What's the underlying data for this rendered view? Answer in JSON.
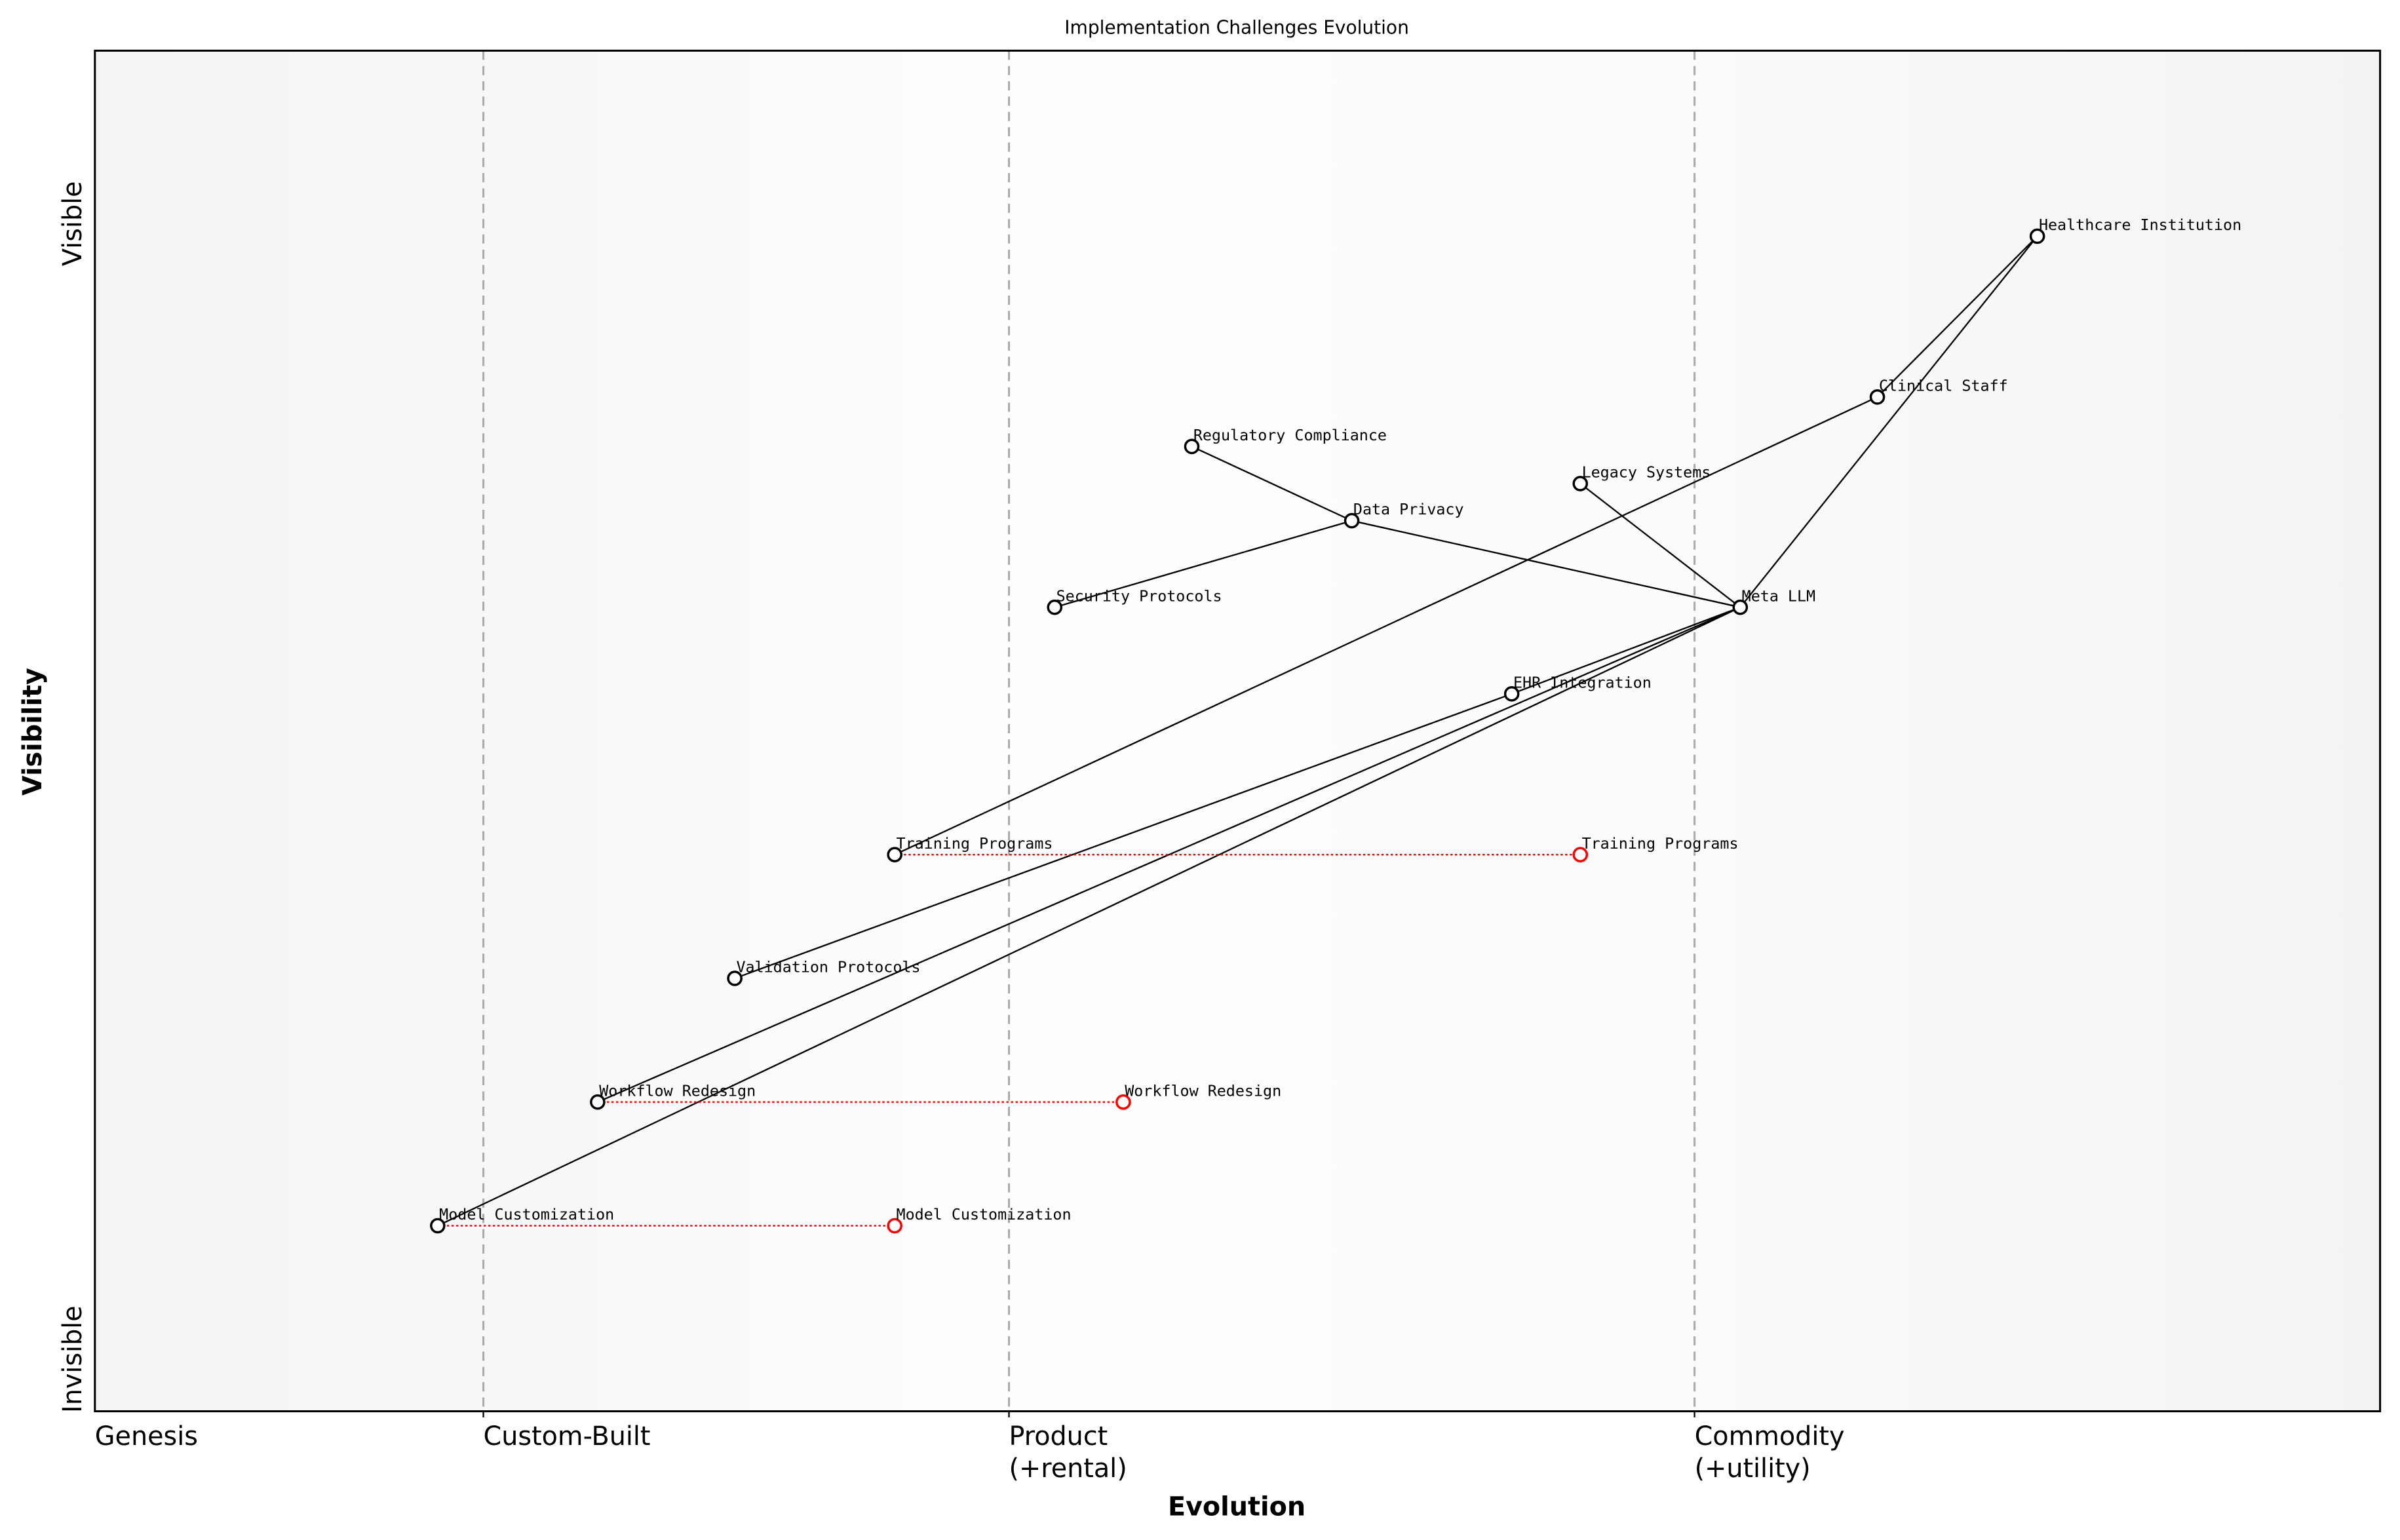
{
  "chart_data": {
    "type": "scatter",
    "title": "Implementation Challenges Evolution",
    "xlabel": "Evolution",
    "ylabel": "Visibility",
    "xlim": [
      0,
      1
    ],
    "ylim": [
      0,
      1.1
    ],
    "grid": false,
    "x_stage_ticks": [
      {
        "value": 0,
        "label": "Genesis"
      },
      {
        "value": 0.17,
        "label": "Custom-Built"
      },
      {
        "value": 0.4,
        "label": "Product\n(+rental)"
      },
      {
        "value": 0.7,
        "label": "Commodity\n(+utility)"
      }
    ],
    "y_labels": {
      "top": "Visible",
      "bottom": "Invisible"
    },
    "components": [
      {
        "name": "Healthcare Institution",
        "x": 0.85,
        "y": 0.95
      },
      {
        "name": "Clinical Staff",
        "x": 0.78,
        "y": 0.82
      },
      {
        "name": "Regulatory Compliance",
        "x": 0.48,
        "y": 0.78
      },
      {
        "name": "Legacy Systems",
        "x": 0.65,
        "y": 0.75
      },
      {
        "name": "Data Privacy",
        "x": 0.55,
        "y": 0.72
      },
      {
        "name": "Security Protocols",
        "x": 0.42,
        "y": 0.65
      },
      {
        "name": "Meta LLM",
        "x": 0.72,
        "y": 0.65
      },
      {
        "name": "EHR Integration",
        "x": 0.62,
        "y": 0.58
      },
      {
        "name": "Training Programs",
        "x": 0.35,
        "y": 0.45
      },
      {
        "name": "Validation Protocols",
        "x": 0.28,
        "y": 0.35
      },
      {
        "name": "Workflow Redesign",
        "x": 0.22,
        "y": 0.25
      },
      {
        "name": "Model Customization",
        "x": 0.15,
        "y": 0.15
      }
    ],
    "links": [
      [
        "Healthcare Institution",
        "Clinical Staff"
      ],
      [
        "Healthcare Institution",
        "Meta LLM"
      ],
      [
        "Clinical Staff",
        "Training Programs"
      ],
      [
        "Legacy Systems",
        "Meta LLM"
      ],
      [
        "Regulatory Compliance",
        "Data Privacy"
      ],
      [
        "Data Privacy",
        "Security Protocols"
      ],
      [
        "Data Privacy",
        "Meta LLM"
      ],
      [
        "Meta LLM",
        "EHR Integration"
      ],
      [
        "EHR Integration",
        "Validation Protocols"
      ],
      [
        "Meta LLM",
        "Workflow Redesign"
      ],
      [
        "Meta LLM",
        "Model Customization"
      ]
    ],
    "evolutions": [
      {
        "name": "Training Programs",
        "from_x": 0.35,
        "to_x": 0.65,
        "y": 0.45
      },
      {
        "name": "Workflow Redesign",
        "from_x": 0.22,
        "to_x": 0.45,
        "y": 0.25
      },
      {
        "name": "Model Customization",
        "from_x": 0.15,
        "to_x": 0.35,
        "y": 0.15
      }
    ],
    "colors": {
      "component": "#000000",
      "evolution": "#ff0000",
      "stage_line": "#aaaaaa"
    }
  }
}
